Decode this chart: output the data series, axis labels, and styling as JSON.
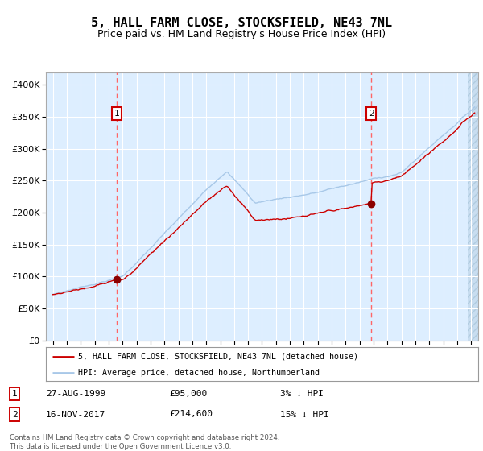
{
  "title": "5, HALL FARM CLOSE, STOCKSFIELD, NE43 7NL",
  "subtitle": "Price paid vs. HM Land Registry's House Price Index (HPI)",
  "legend_line1": "5, HALL FARM CLOSE, STOCKSFIELD, NE43 7NL (detached house)",
  "legend_line2": "HPI: Average price, detached house, Northumberland",
  "sale1_date": "27-AUG-1999",
  "sale1_price": 95000,
  "sale1_label": "3% ↓ HPI",
  "sale2_date": "16-NOV-2017",
  "sale2_price": 214600,
  "sale2_label": "15% ↓ HPI",
  "footer": "Contains HM Land Registry data © Crown copyright and database right 2024.\nThis data is licensed under the Open Government Licence v3.0.",
  "hpi_color": "#a8c8e8",
  "price_color": "#cc0000",
  "sale_dot_color": "#8b0000",
  "vline_color": "#ff6666",
  "background_color": "#ddeeff",
  "ylim": [
    0,
    420000
  ],
  "yticks": [
    0,
    50000,
    100000,
    150000,
    200000,
    250000,
    300000,
    350000,
    400000
  ],
  "sale1_year": 1999.583,
  "sale2_year": 2017.833
}
